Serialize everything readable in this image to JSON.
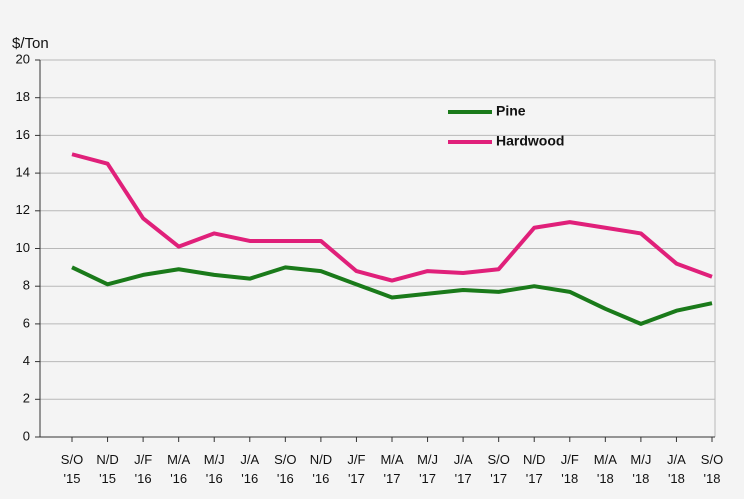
{
  "chart_data": {
    "type": "line",
    "ylabel": "$/Ton",
    "categories": [
      "S/O\n'15",
      "N/D\n'15",
      "J/F\n'16",
      "M/A\n'16",
      "M/J\n'16",
      "J/A\n'16",
      "S/O\n'16",
      "N/D\n'16",
      "J/F\n'17",
      "M/A\n'17",
      "M/J\n'17",
      "J/A\n'17",
      "S/O\n'17",
      "N/D\n'17",
      "J/F\n'18",
      "M/A\n'18",
      "M/J\n'18",
      "J/A\n'18",
      "S/O\n'18"
    ],
    "series": [
      {
        "name": "Pine",
        "color": "#1a7a1a",
        "values": [
          9.0,
          8.1,
          8.6,
          8.9,
          8.6,
          8.4,
          9.0,
          8.8,
          8.1,
          7.4,
          7.6,
          7.8,
          7.7,
          8.0,
          7.7,
          6.8,
          6.0,
          6.7,
          7.1
        ]
      },
      {
        "name": "Hardwood",
        "color": "#e0207a",
        "values": [
          15.0,
          14.5,
          11.6,
          10.1,
          10.8,
          10.4,
          10.4,
          10.4,
          8.8,
          8.3,
          8.8,
          8.7,
          8.9,
          11.1,
          11.4,
          11.1,
          10.8,
          9.2,
          8.5
        ]
      }
    ],
    "ylim": [
      0,
      20
    ],
    "yticks": [
      0,
      2,
      4,
      6,
      8,
      10,
      12,
      14,
      16,
      18,
      20
    ],
    "grid": true,
    "legend": "top-right"
  }
}
